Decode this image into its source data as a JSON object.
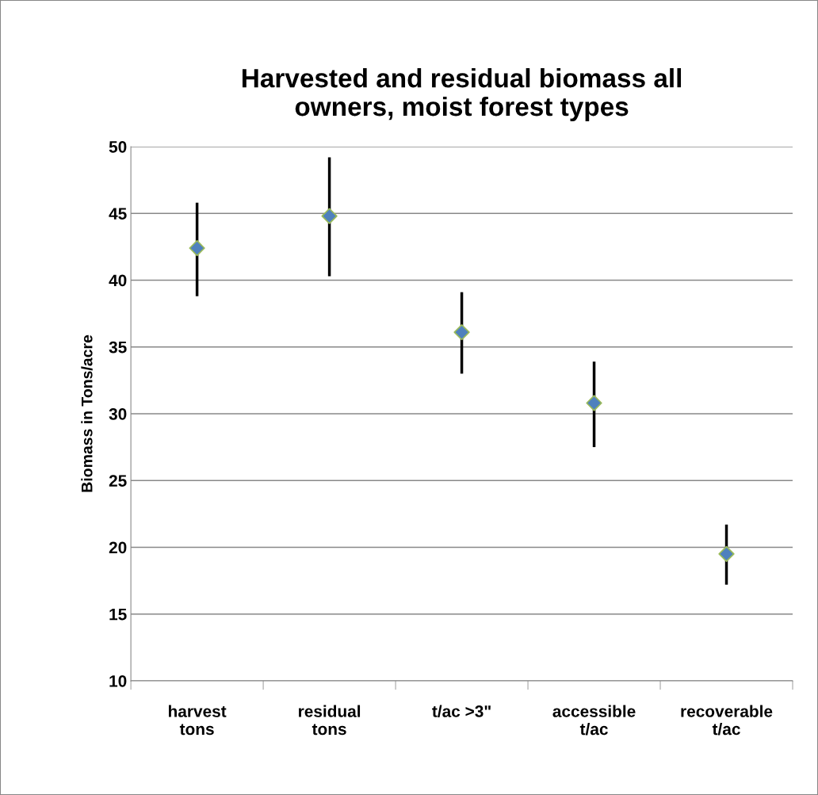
{
  "chart_data": {
    "type": "scatter",
    "title": "Harvested and residual biomass all\nowners, moist forest types",
    "ylabel": "Biomass in Tons/acre",
    "categories": [
      "harvest\ntons",
      "residual\ntons",
      "t/ac >3\"",
      "accessible\nt/ac",
      "recoverable\nt/ac"
    ],
    "series": [
      {
        "color": "#4f81bd",
        "values": [
          42.4,
          44.8,
          36.1,
          30.8,
          19.5
        ],
        "errors": [
          [
            38.8,
            45.8
          ],
          [
            40.3,
            49.2
          ],
          [
            33.0,
            39.1
          ],
          [
            27.5,
            33.9
          ],
          [
            17.2,
            21.7
          ]
        ]
      }
    ],
    "ylim": [
      10,
      50
    ],
    "yticks": [
      10,
      15,
      20,
      25,
      30,
      35,
      40,
      45,
      50
    ],
    "grid": "y",
    "marker": "diamond",
    "legend": false
  }
}
